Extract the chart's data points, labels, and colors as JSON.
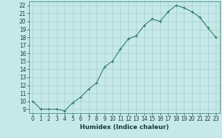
{
  "x": [
    0,
    1,
    2,
    3,
    4,
    5,
    6,
    7,
    8,
    9,
    10,
    11,
    12,
    13,
    14,
    15,
    16,
    17,
    18,
    19,
    20,
    21,
    22,
    23
  ],
  "y": [
    10,
    9,
    9,
    9,
    8.8,
    9.8,
    10.5,
    11.5,
    12.3,
    14.3,
    15,
    16.5,
    17.8,
    18.2,
    19.5,
    20.3,
    20,
    21.2,
    22.0,
    21.7,
    21.2,
    20.5,
    19.2,
    18
  ],
  "line_color": "#2a7a65",
  "marker": "+",
  "marker_size": 3,
  "bg_color": "#c5e8e8",
  "grid_color": "#a8cccc",
  "xlabel": "Humidex (Indice chaleur)",
  "xlim": [
    -0.5,
    23.5
  ],
  "ylim": [
    8.5,
    22.5
  ],
  "yticks": [
    9,
    10,
    11,
    12,
    13,
    14,
    15,
    16,
    17,
    18,
    19,
    20,
    21,
    22
  ],
  "xticks": [
    0,
    1,
    2,
    3,
    4,
    5,
    6,
    7,
    8,
    9,
    10,
    11,
    12,
    13,
    14,
    15,
    16,
    17,
    18,
    19,
    20,
    21,
    22,
    23
  ],
  "tick_fontsize": 5.5,
  "xlabel_fontsize": 6.5,
  "line_width": 0.8
}
